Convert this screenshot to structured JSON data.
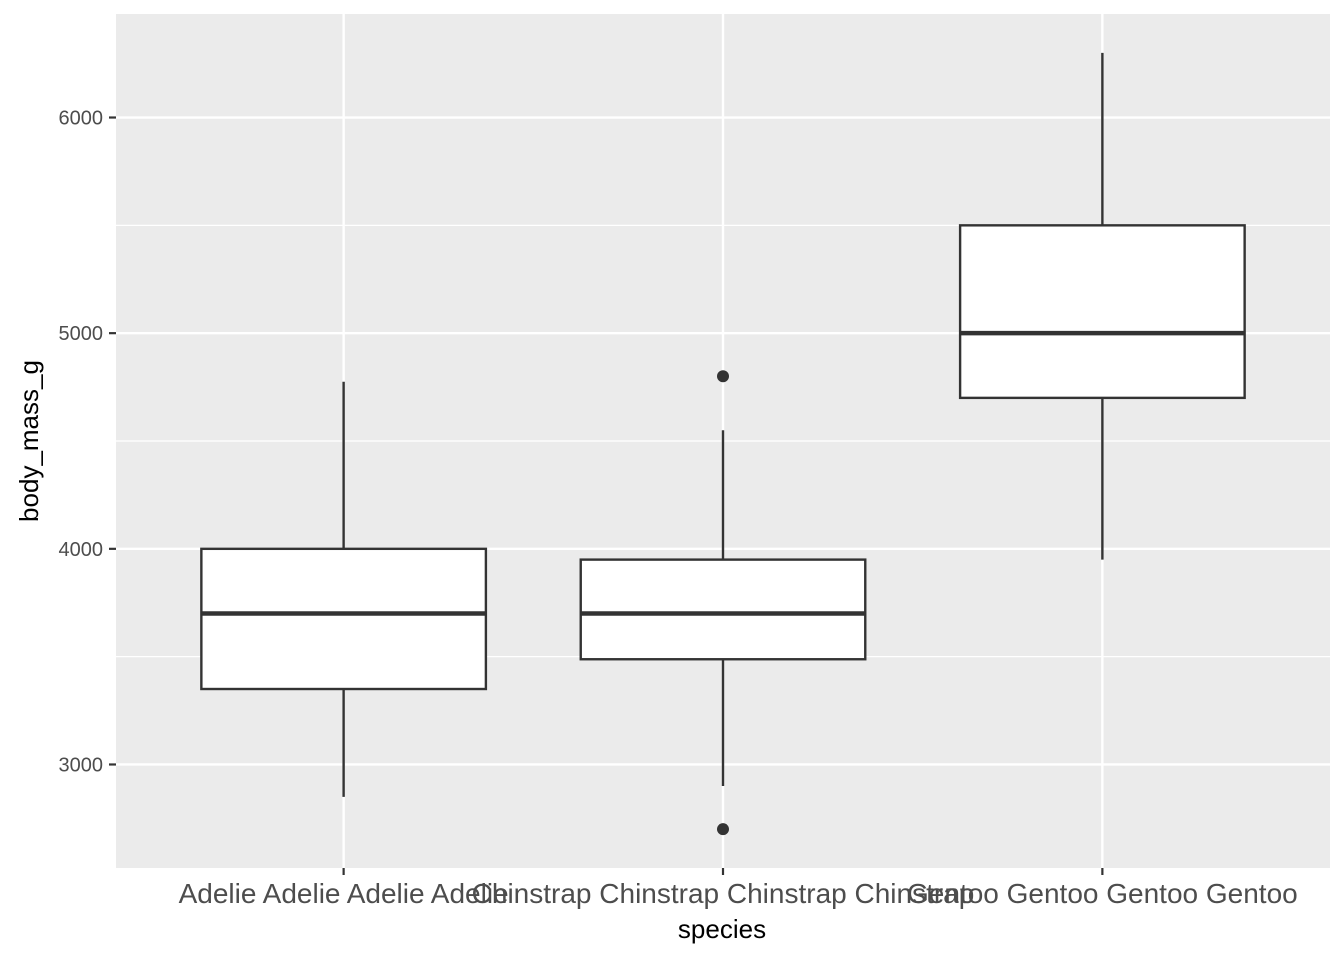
{
  "chart_data": {
    "type": "boxplot",
    "title": "",
    "xlabel": "species",
    "ylabel": "body_mass_g",
    "ylim": [
      2520,
      6480
    ],
    "yticks": [
      3000,
      4000,
      5000,
      6000
    ],
    "yticks_minor": [
      3500,
      4500,
      5500
    ],
    "grid": true,
    "categories": [
      "Adelie Adelie Adelie Adelie",
      "Chinstrap Chinstrap Chinstrap Chinstrap",
      "Gentoo Gentoo Gentoo Gentoo"
    ],
    "boxes": [
      {
        "whisker_low": 2850,
        "q1": 3350,
        "median": 3700,
        "q3": 4000,
        "whisker_high": 4775,
        "outliers": []
      },
      {
        "whisker_low": 2900,
        "q1": 3488,
        "median": 3700,
        "q3": 3950,
        "whisker_high": 4550,
        "outliers": [
          2700,
          4800
        ]
      },
      {
        "whisker_low": 3950,
        "q1": 4700,
        "median": 5000,
        "q3": 5500,
        "whisker_high": 6300,
        "outliers": []
      }
    ],
    "colors": {
      "panel_background": "#ebebeb",
      "grid": "#ffffff",
      "box_fill": "#ffffff",
      "box_stroke": "#333333",
      "tick_text": "#4d4d4d",
      "title_text": "#000000"
    }
  }
}
